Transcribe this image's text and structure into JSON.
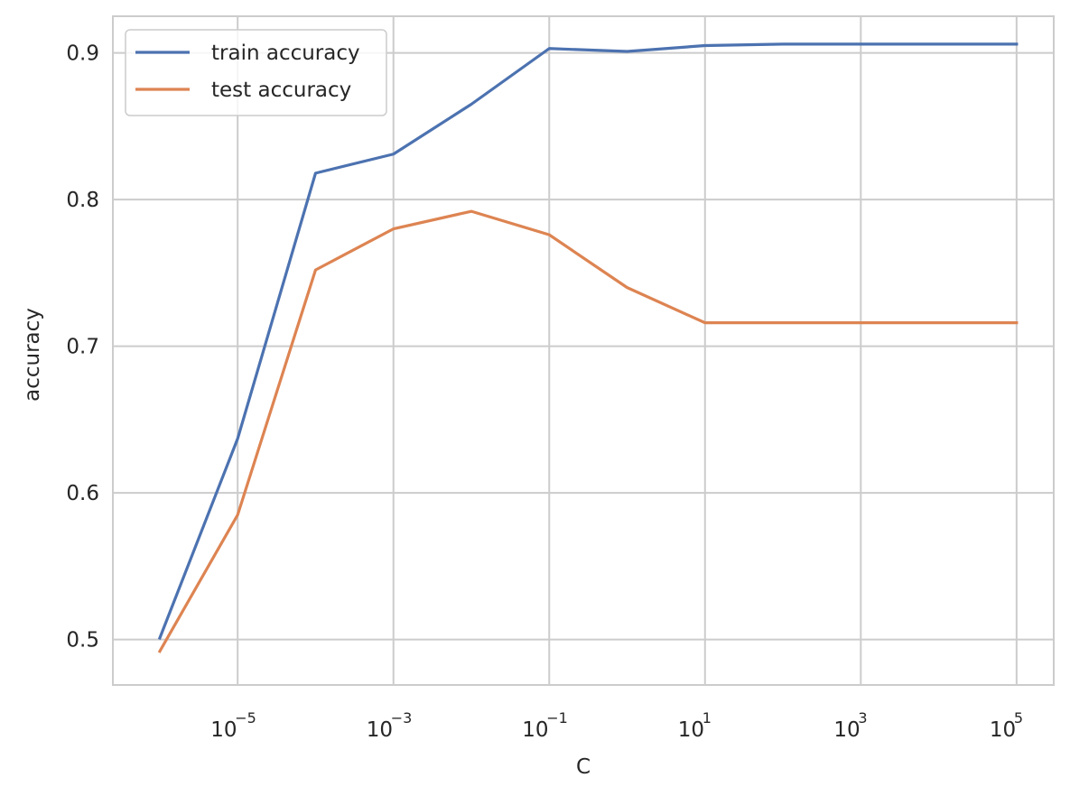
{
  "chart_data": {
    "type": "line",
    "title": "",
    "xlabel": "C",
    "ylabel": "accuracy",
    "xscale": "log",
    "grid": true,
    "legend_position": "top-left",
    "x": [
      1e-06,
      1e-05,
      0.0001,
      0.001,
      0.01,
      0.1,
      1,
      10,
      100,
      1000,
      10000,
      100000
    ],
    "xlim": [
      2.5e-07,
      300000
    ],
    "ylim": [
      0.469,
      0.925
    ],
    "x_ticks": [
      {
        "value": 1e-05,
        "base": "10",
        "exp": "−5"
      },
      {
        "value": 0.001,
        "base": "10",
        "exp": "−3"
      },
      {
        "value": 0.1,
        "base": "10",
        "exp": "−1"
      },
      {
        "value": 10,
        "base": "10",
        "exp": "1"
      },
      {
        "value": 1000,
        "base": "10",
        "exp": "3"
      },
      {
        "value": 100000,
        "base": "10",
        "exp": "5"
      }
    ],
    "y_ticks": [
      {
        "value": 0.5,
        "label": "0.5"
      },
      {
        "value": 0.6,
        "label": "0.6"
      },
      {
        "value": 0.7,
        "label": "0.7"
      },
      {
        "value": 0.8,
        "label": "0.8"
      },
      {
        "value": 0.9,
        "label": "0.9"
      }
    ],
    "series": [
      {
        "name": "train accuracy",
        "color": "#4c72b0",
        "values": [
          0.501,
          0.637,
          0.818,
          0.831,
          0.865,
          0.903,
          0.901,
          0.905,
          0.906,
          0.906,
          0.906,
          0.906
        ]
      },
      {
        "name": "test accuracy",
        "color": "#dd8452",
        "values": [
          0.492,
          0.585,
          0.752,
          0.78,
          0.792,
          0.776,
          0.74,
          0.716,
          0.716,
          0.716,
          0.716,
          0.716
        ]
      }
    ]
  },
  "colors": {
    "grid": "#cccccc",
    "spine": "#cccccc",
    "text": "#262626"
  }
}
